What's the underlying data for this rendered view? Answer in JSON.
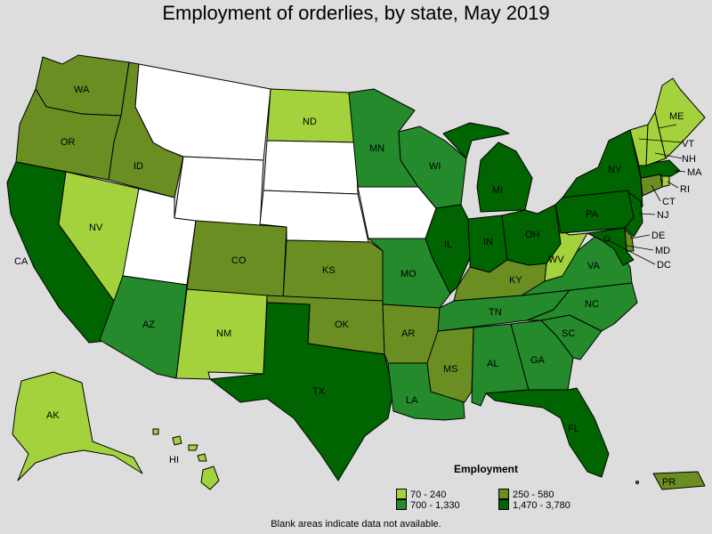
{
  "title": "Employment of orderlies, by state, May 2019",
  "legend": {
    "title": "Employment",
    "items": [
      {
        "label": "70 - 240",
        "color": "#a4d23c"
      },
      {
        "label": "250 - 580",
        "color": "#6b8e23"
      },
      {
        "label": "700 - 1,330",
        "color": "#248a2c"
      },
      {
        "label": "1,470 - 3,780",
        "color": "#006400"
      }
    ]
  },
  "no_data_color": "#ffffff",
  "footnote": "Blank areas indicate data not available.",
  "states": {
    "WA": {
      "label": "WA",
      "tier": 1
    },
    "OR": {
      "label": "OR",
      "tier": 1
    },
    "CA": {
      "label": "CA",
      "tier": 3
    },
    "NV": {
      "label": "NV",
      "tier": 0
    },
    "ID": {
      "label": "ID",
      "tier": 1
    },
    "MT": {
      "label": "",
      "tier": null
    },
    "WY": {
      "label": "",
      "tier": null
    },
    "UT": {
      "label": "",
      "tier": null
    },
    "AZ": {
      "label": "AZ",
      "tier": 2
    },
    "CO": {
      "label": "CO",
      "tier": 1
    },
    "NM": {
      "label": "NM",
      "tier": 0
    },
    "ND": {
      "label": "ND",
      "tier": 0
    },
    "SD": {
      "label": "",
      "tier": null
    },
    "NE": {
      "label": "",
      "tier": null
    },
    "KS": {
      "label": "KS",
      "tier": 1
    },
    "OK": {
      "label": "OK",
      "tier": 1
    },
    "TX": {
      "label": "TX",
      "tier": 3
    },
    "MN": {
      "label": "MN",
      "tier": 2
    },
    "IA": {
      "label": "",
      "tier": null
    },
    "MO": {
      "label": "MO",
      "tier": 2
    },
    "AR": {
      "label": "AR",
      "tier": 1
    },
    "LA": {
      "label": "LA",
      "tier": 2
    },
    "WI": {
      "label": "WI",
      "tier": 2
    },
    "IL": {
      "label": "IL",
      "tier": 3
    },
    "MI": {
      "label": "MI",
      "tier": 3
    },
    "IN": {
      "label": "IN",
      "tier": 3
    },
    "OH": {
      "label": "OH",
      "tier": 3
    },
    "KY": {
      "label": "KY",
      "tier": 1
    },
    "TN": {
      "label": "TN",
      "tier": 2
    },
    "MS": {
      "label": "MS",
      "tier": 1
    },
    "AL": {
      "label": "AL",
      "tier": 2
    },
    "GA": {
      "label": "GA",
      "tier": 2
    },
    "FL": {
      "label": "FL",
      "tier": 3
    },
    "SC": {
      "label": "SC",
      "tier": 2
    },
    "NC": {
      "label": "NC",
      "tier": 2
    },
    "VA": {
      "label": "VA",
      "tier": 2
    },
    "WV": {
      "label": "WV",
      "tier": 0
    },
    "PA": {
      "label": "PA",
      "tier": 3
    },
    "NY": {
      "label": "NY",
      "tier": 3
    },
    "NJ": {
      "label": "NJ",
      "tier": 3
    },
    "DE": {
      "label": "DE",
      "tier": 1
    },
    "MD": {
      "label": "MD",
      "tier": 3
    },
    "DC": {
      "label": "DC",
      "tier": 3
    },
    "CT": {
      "label": "CT",
      "tier": 1
    },
    "RI": {
      "label": "RI",
      "tier": 0
    },
    "MA": {
      "label": "MA",
      "tier": 3
    },
    "VT": {
      "label": "VT",
      "tier": 0
    },
    "NH": {
      "label": "NH",
      "tier": 0
    },
    "ME": {
      "label": "ME",
      "tier": 0
    },
    "AK": {
      "label": "AK",
      "tier": 0
    },
    "HI": {
      "label": "HI",
      "tier": 0
    },
    "PR": {
      "label": "PR",
      "tier": 1
    }
  }
}
